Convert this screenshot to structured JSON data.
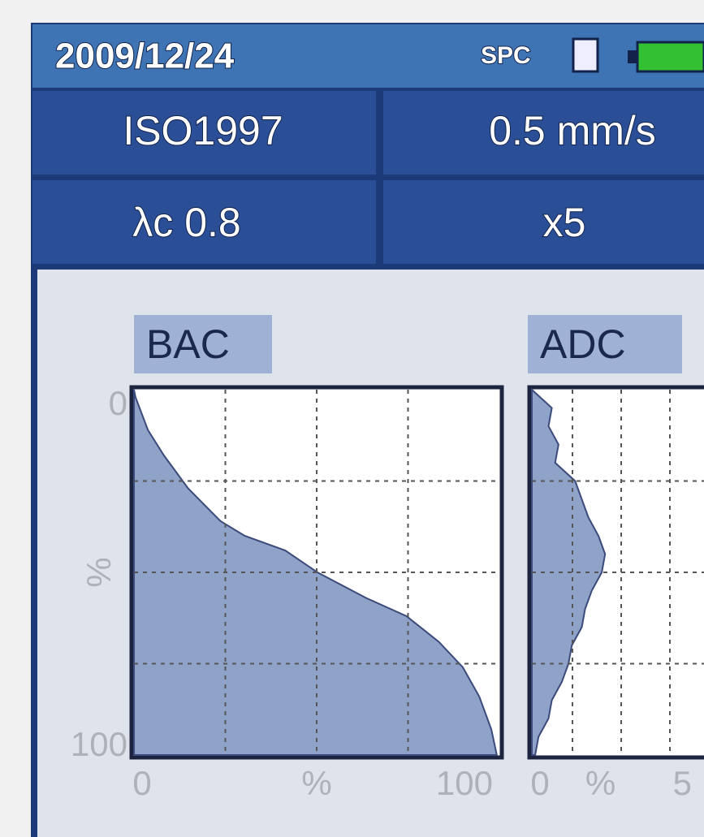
{
  "header": {
    "date": "2009/12/24",
    "mode": "SPC"
  },
  "settings": {
    "standard": "ISO1997",
    "speed": "0.5 mm/s",
    "cutoff": "λc 0.8",
    "magnification": "x5"
  },
  "chart_data": [
    {
      "type": "area",
      "title": "BAC",
      "xlabel": "%",
      "ylabel": "%",
      "y": [
        0,
        2,
        11,
        18,
        27,
        36,
        40,
        44,
        50,
        57,
        62,
        69,
        76,
        84,
        93,
        100
      ],
      "x": [
        0,
        0.4,
        3.8,
        8.2,
        14.8,
        23.7,
        30.3,
        41.4,
        50.2,
        63.5,
        74.6,
        83.4,
        90.0,
        94.5,
        97.8,
        99.3
      ],
      "xlim": [
        0,
        100
      ],
      "ylim": [
        0,
        100
      ],
      "xticks": [
        0,
        100
      ],
      "yticks": [
        0,
        100
      ],
      "color": "#8fa3c9"
    },
    {
      "type": "area",
      "title": "ADC",
      "xlabel": "%",
      "y": [
        0,
        5,
        10,
        15,
        20,
        25,
        30,
        35,
        40,
        45,
        50,
        55,
        60,
        65,
        70,
        75,
        80,
        85,
        90,
        95,
        100
      ],
      "x": [
        0,
        0.6,
        0.5,
        0.8,
        0.7,
        1.3,
        1.5,
        1.7,
        2.0,
        2.2,
        2.1,
        1.8,
        1.6,
        1.5,
        1.2,
        1.1,
        0.9,
        0.6,
        0.5,
        0.2,
        0.1
      ],
      "xlim": [
        0,
        5
      ],
      "ylim": [
        0,
        100
      ],
      "xticks": [
        0,
        5
      ],
      "color": "#8fa3c9"
    }
  ]
}
